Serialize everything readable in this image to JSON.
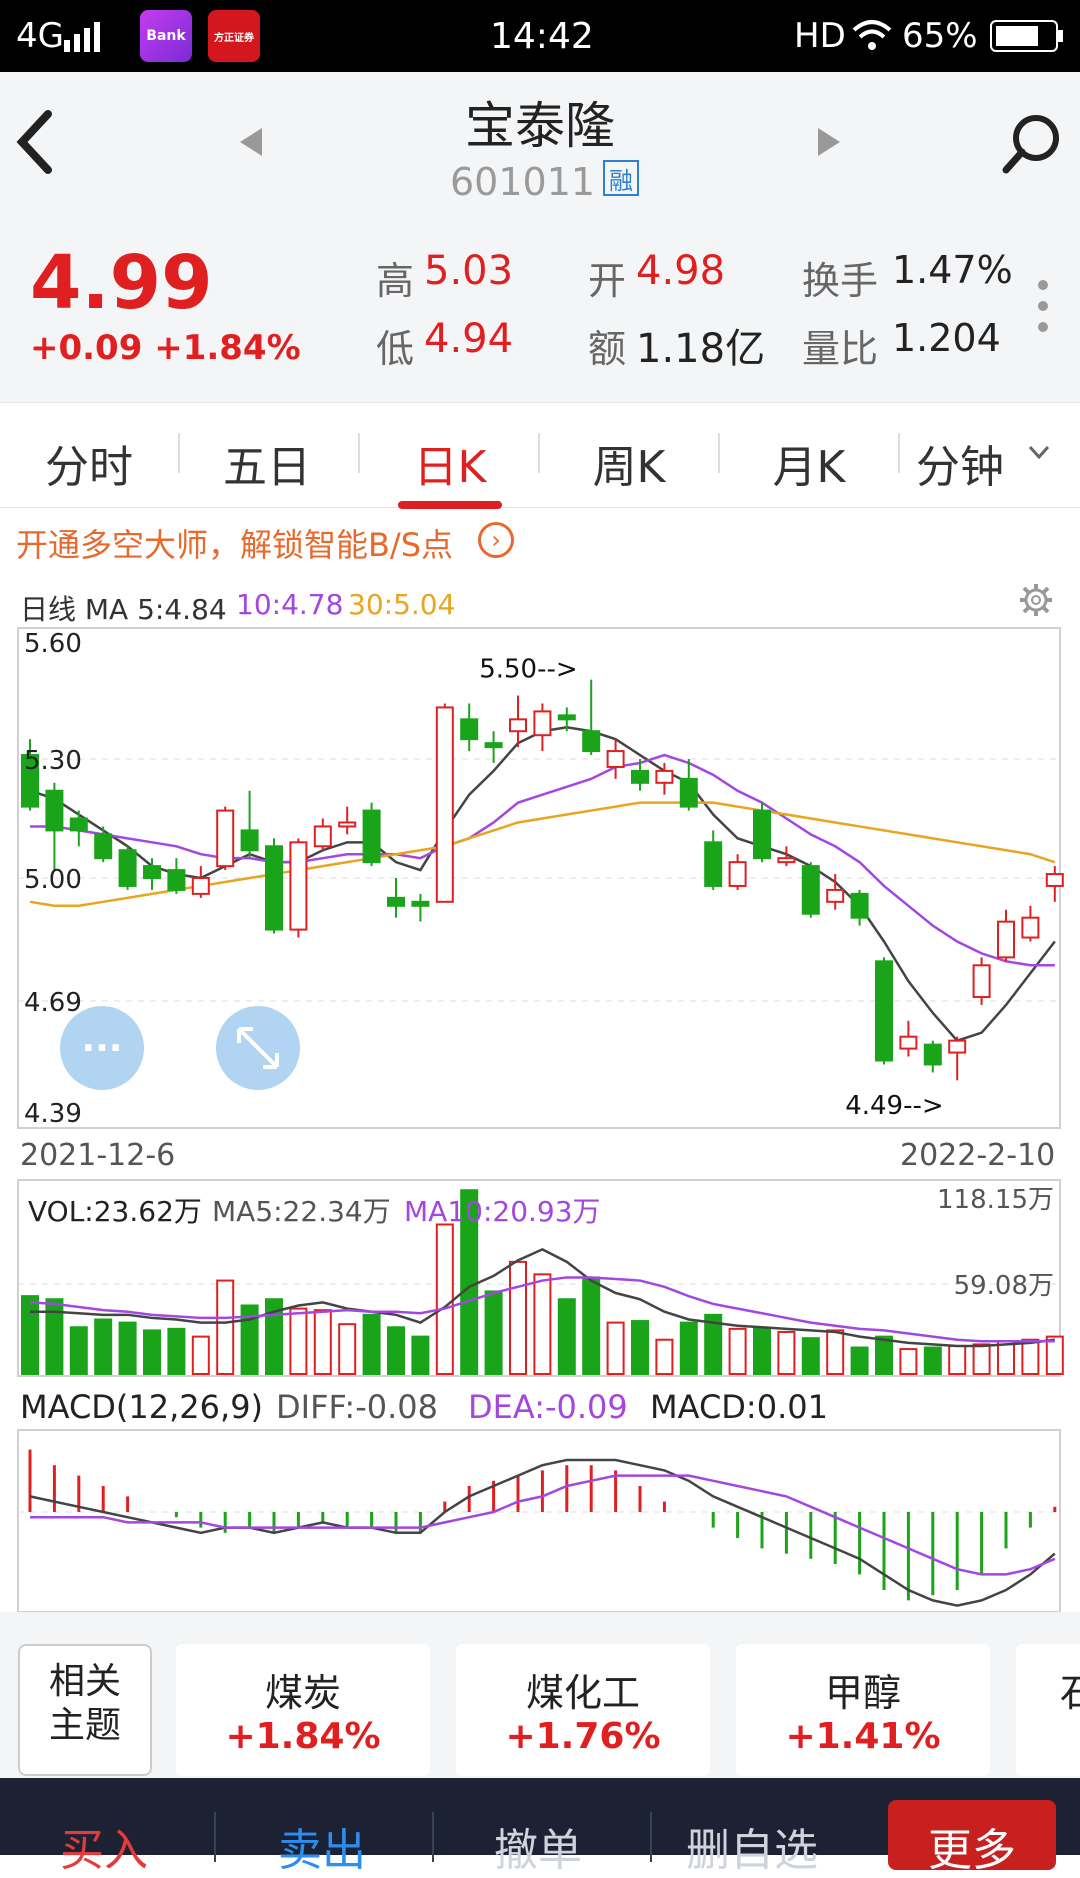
{
  "status_bar": {
    "network": "4G",
    "time": "14:42",
    "hd": "HD",
    "battery": "65%",
    "app1": "Bank",
    "app2": "方正证券"
  },
  "header": {
    "name": "宝泰隆",
    "code": "601011",
    "badge": "融",
    "price": "4.99",
    "change": "+0.09 +1.84%",
    "high_label": "高",
    "high": "5.03",
    "low_label": "低",
    "low": "4.94",
    "open_label": "开",
    "open": "4.98",
    "amount_label": "额",
    "amount": "1.18亿",
    "turnover_label": "换手",
    "turnover": "1.47%",
    "vol_ratio_label": "量比",
    "vol_ratio": "1.204"
  },
  "tabs": [
    "分时",
    "五日",
    "日K",
    "周K",
    "月K",
    "分钟"
  ],
  "active_tab": "日K",
  "promo": "开通多空大师，解锁智能B/S点",
  "ma_legend": {
    "title": "日线 MA 5:4.84",
    "ma10": "10:4.78",
    "ma30": "30:5.04"
  },
  "colors": {
    "up": "#e02020",
    "down": "#1aa41a",
    "ma5": "#444444",
    "ma10": "#a446e0",
    "ma30": "#e8a51f"
  },
  "chart_data": [
    {
      "type": "candlestick",
      "y_ticks": [
        "5.60",
        "5.30",
        "5.00",
        "4.69",
        "4.39"
      ],
      "ylim": [
        4.39,
        5.6
      ],
      "start_date": "2021-12-6",
      "end_date": "2022-2-10",
      "high_annotation": "5.50-->",
      "low_annotation": "4.49-->",
      "candles": [
        [
          5.31,
          5.18,
          5.35,
          5.17
        ],
        [
          5.22,
          5.12,
          5.24,
          5.02
        ],
        [
          5.15,
          5.12,
          5.17,
          5.08
        ],
        [
          5.11,
          5.05,
          5.13,
          5.04
        ],
        [
          5.07,
          4.98,
          5.08,
          4.97
        ],
        [
          5.03,
          5.0,
          5.05,
          4.97
        ],
        [
          5.02,
          4.97,
          5.05,
          4.96
        ],
        [
          4.96,
          5.0,
          5.03,
          4.95
        ],
        [
          5.03,
          5.17,
          5.18,
          5.02
        ],
        [
          5.12,
          5.07,
          5.22,
          5.05
        ],
        [
          5.08,
          4.87,
          5.1,
          4.86
        ],
        [
          4.87,
          5.09,
          5.1,
          4.85
        ],
        [
          5.08,
          5.13,
          5.15,
          5.07
        ],
        [
          5.13,
          5.14,
          5.18,
          5.11
        ],
        [
          5.17,
          5.04,
          5.19,
          5.03
        ],
        [
          4.95,
          4.93,
          5.0,
          4.9
        ],
        [
          4.94,
          4.93,
          4.96,
          4.89
        ],
        [
          4.94,
          5.43,
          5.44,
          4.94
        ],
        [
          5.4,
          5.35,
          5.44,
          5.32
        ],
        [
          5.34,
          5.33,
          5.37,
          5.29
        ],
        [
          5.37,
          5.4,
          5.46,
          5.33
        ],
        [
          5.36,
          5.42,
          5.44,
          5.32
        ],
        [
          5.41,
          5.4,
          5.43,
          5.37
        ],
        [
          5.37,
          5.32,
          5.5,
          5.31
        ],
        [
          5.28,
          5.32,
          5.35,
          5.25
        ],
        [
          5.27,
          5.24,
          5.3,
          5.22
        ],
        [
          5.24,
          5.27,
          5.29,
          5.21
        ],
        [
          5.25,
          5.18,
          5.3,
          5.17
        ],
        [
          5.09,
          4.98,
          5.12,
          4.97
        ],
        [
          4.98,
          5.04,
          5.06,
          4.97
        ],
        [
          5.17,
          5.05,
          5.19,
          5.04
        ],
        [
          5.04,
          5.05,
          5.08,
          5.03
        ],
        [
          5.03,
          4.91,
          5.04,
          4.9
        ],
        [
          4.94,
          4.97,
          5.01,
          4.92
        ],
        [
          4.96,
          4.9,
          4.97,
          4.88
        ],
        [
          4.79,
          4.54,
          4.8,
          4.53
        ],
        [
          4.57,
          4.6,
          4.64,
          4.55
        ],
        [
          4.58,
          4.53,
          4.59,
          4.51
        ],
        [
          4.56,
          4.59,
          4.6,
          4.49
        ],
        [
          4.7,
          4.78,
          4.8,
          4.68
        ],
        [
          4.8,
          4.89,
          4.92,
          4.79
        ],
        [
          4.85,
          4.9,
          4.93,
          4.84
        ],
        [
          4.98,
          5.01,
          5.03,
          4.94
        ]
      ],
      "ma5": [
        5.22,
        5.2,
        5.16,
        5.12,
        5.08,
        5.03,
        5.01,
        5.0,
        5.03,
        5.06,
        5.04,
        5.04,
        5.07,
        5.09,
        5.09,
        5.04,
        5.02,
        5.12,
        5.21,
        5.27,
        5.34,
        5.37,
        5.38,
        5.37,
        5.35,
        5.31,
        5.27,
        5.24,
        5.16,
        5.1,
        5.08,
        5.06,
        5.03,
        4.99,
        4.93,
        4.84,
        4.74,
        4.66,
        4.59,
        4.61,
        4.68,
        4.76,
        4.84
      ],
      "ma10": [
        5.13,
        5.13,
        5.12,
        5.11,
        5.1,
        5.09,
        5.08,
        5.06,
        5.05,
        5.05,
        5.04,
        5.04,
        5.05,
        5.06,
        5.06,
        5.06,
        5.05,
        5.08,
        5.1,
        5.14,
        5.19,
        5.21,
        5.23,
        5.25,
        5.28,
        5.29,
        5.31,
        5.29,
        5.26,
        5.22,
        5.19,
        5.15,
        5.11,
        5.08,
        5.04,
        4.98,
        4.93,
        4.88,
        4.84,
        4.81,
        4.79,
        4.78,
        4.78
      ],
      "ma30": [
        4.94,
        4.93,
        4.93,
        4.94,
        4.95,
        4.96,
        4.97,
        4.98,
        4.99,
        5.0,
        5.01,
        5.02,
        5.03,
        5.04,
        5.05,
        5.06,
        5.07,
        5.08,
        5.1,
        5.12,
        5.14,
        5.15,
        5.16,
        5.17,
        5.18,
        5.19,
        5.19,
        5.19,
        5.19,
        5.18,
        5.17,
        5.16,
        5.15,
        5.14,
        5.13,
        5.12,
        5.11,
        5.1,
        5.09,
        5.08,
        5.07,
        5.06,
        5.04
      ]
    },
    {
      "type": "bar",
      "legend": {
        "vol": "VOL:23.62万",
        "ma5": "MA5:22.34万",
        "ma10": "MA10:20.93万"
      },
      "y_ticks": [
        "118.15万",
        "59.08万"
      ],
      "ylim": [
        0,
        118.15
      ],
      "volumes": [
        50,
        48,
        30,
        35,
        33,
        28,
        29,
        24,
        60,
        44,
        48,
        42,
        41,
        32,
        38,
        30,
        24,
        96,
        118,
        53,
        72,
        64,
        48,
        62,
        33,
        34,
        22,
        33,
        38,
        29,
        29,
        27,
        23,
        28,
        17,
        24,
        16,
        17,
        18,
        19,
        21,
        22,
        24
      ],
      "ma5_values": [
        40,
        40,
        39,
        38,
        38,
        36,
        35,
        33,
        33,
        35,
        40,
        44,
        46,
        42,
        40,
        38,
        33,
        43,
        56,
        63,
        73,
        80,
        72,
        60,
        52,
        48,
        40,
        35,
        33,
        31,
        30,
        29,
        28,
        27,
        24,
        22,
        20,
        19,
        18,
        18,
        19,
        20,
        22
      ],
      "ma10_values": [
        46,
        45,
        43,
        41,
        40,
        38,
        37,
        36,
        36,
        37,
        38,
        39,
        40,
        41,
        40,
        40,
        39,
        42,
        47,
        52,
        56,
        60,
        62,
        62,
        61,
        60,
        56,
        50,
        45,
        42,
        39,
        36,
        33,
        31,
        29,
        28,
        26,
        24,
        22,
        21,
        21,
        21,
        21
      ]
    },
    {
      "type": "bar",
      "legend": {
        "title": "MACD(12,26,9)",
        "diff": "DIFF:-0.08",
        "dea": "DEA:-0.09",
        "macd": "MACD:0.01"
      },
      "macd": [
        0.12,
        0.09,
        0.07,
        0.05,
        0.03,
        0.0,
        -0.01,
        -0.03,
        -0.04,
        -0.03,
        -0.04,
        -0.03,
        -0.02,
        -0.03,
        -0.03,
        -0.04,
        -0.04,
        0.02,
        0.05,
        0.06,
        0.07,
        0.08,
        0.09,
        0.09,
        0.08,
        0.05,
        0.02,
        0.0,
        -0.03,
        -0.05,
        -0.07,
        -0.08,
        -0.09,
        -0.1,
        -0.12,
        -0.15,
        -0.17,
        -0.16,
        -0.15,
        -0.12,
        -0.07,
        -0.03,
        0.01
      ],
      "diff": [
        0.03,
        0.02,
        0.01,
        0.0,
        -0.01,
        -0.02,
        -0.03,
        -0.04,
        -0.03,
        -0.03,
        -0.04,
        -0.03,
        -0.02,
        -0.03,
        -0.03,
        -0.04,
        -0.04,
        0.0,
        0.03,
        0.05,
        0.07,
        0.09,
        0.1,
        0.1,
        0.1,
        0.09,
        0.08,
        0.06,
        0.03,
        0.01,
        -0.01,
        -0.03,
        -0.05,
        -0.07,
        -0.09,
        -0.12,
        -0.15,
        -0.17,
        -0.18,
        -0.17,
        -0.15,
        -0.12,
        -0.08
      ],
      "dea": [
        -0.01,
        -0.01,
        -0.01,
        -0.01,
        -0.02,
        -0.02,
        -0.02,
        -0.02,
        -0.03,
        -0.03,
        -0.03,
        -0.03,
        -0.03,
        -0.03,
        -0.03,
        -0.03,
        -0.03,
        -0.02,
        -0.01,
        0.0,
        0.02,
        0.03,
        0.05,
        0.06,
        0.07,
        0.07,
        0.07,
        0.07,
        0.06,
        0.05,
        0.04,
        0.03,
        0.01,
        -0.01,
        -0.03,
        -0.05,
        -0.07,
        -0.09,
        -0.11,
        -0.12,
        -0.12,
        -0.11,
        -0.09
      ]
    }
  ],
  "themes": {
    "label": "相关主题",
    "items": [
      {
        "name": "煤炭",
        "pct": "+1.84%"
      },
      {
        "name": "煤化工",
        "pct": "+1.76%"
      },
      {
        "name": "甲醇",
        "pct": "+1.41%"
      }
    ],
    "partial": "石"
  },
  "bottom": {
    "buy": "买入",
    "sell": "卖出",
    "cancel": "撤单",
    "remove": "删自选",
    "more": "更多"
  }
}
